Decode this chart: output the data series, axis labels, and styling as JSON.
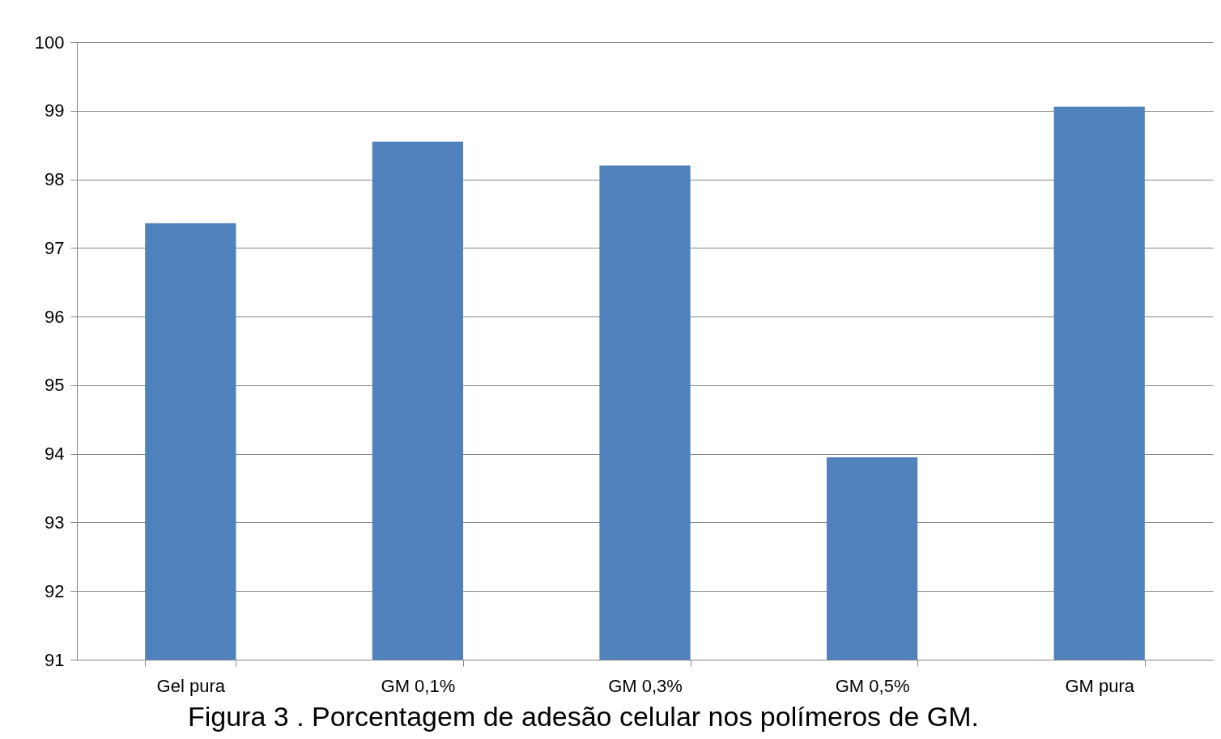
{
  "chart_data": {
    "type": "bar",
    "categories": [
      "Gel pura",
      "GM 0,1%",
      "GM 0,3%",
      "GM 0,5%",
      "GM pura"
    ],
    "values": [
      97.36,
      98.55,
      98.2,
      93.95,
      99.06
    ],
    "color": "#4f81bd",
    "ylim": [
      91,
      100
    ],
    "yticks": [
      91,
      92,
      93,
      94,
      95,
      96,
      97,
      98,
      99,
      100
    ],
    "grid": "y",
    "annotations": [
      "Figura 3 . Porcentagem de adesão celular nos polímeros de GM."
    ]
  }
}
